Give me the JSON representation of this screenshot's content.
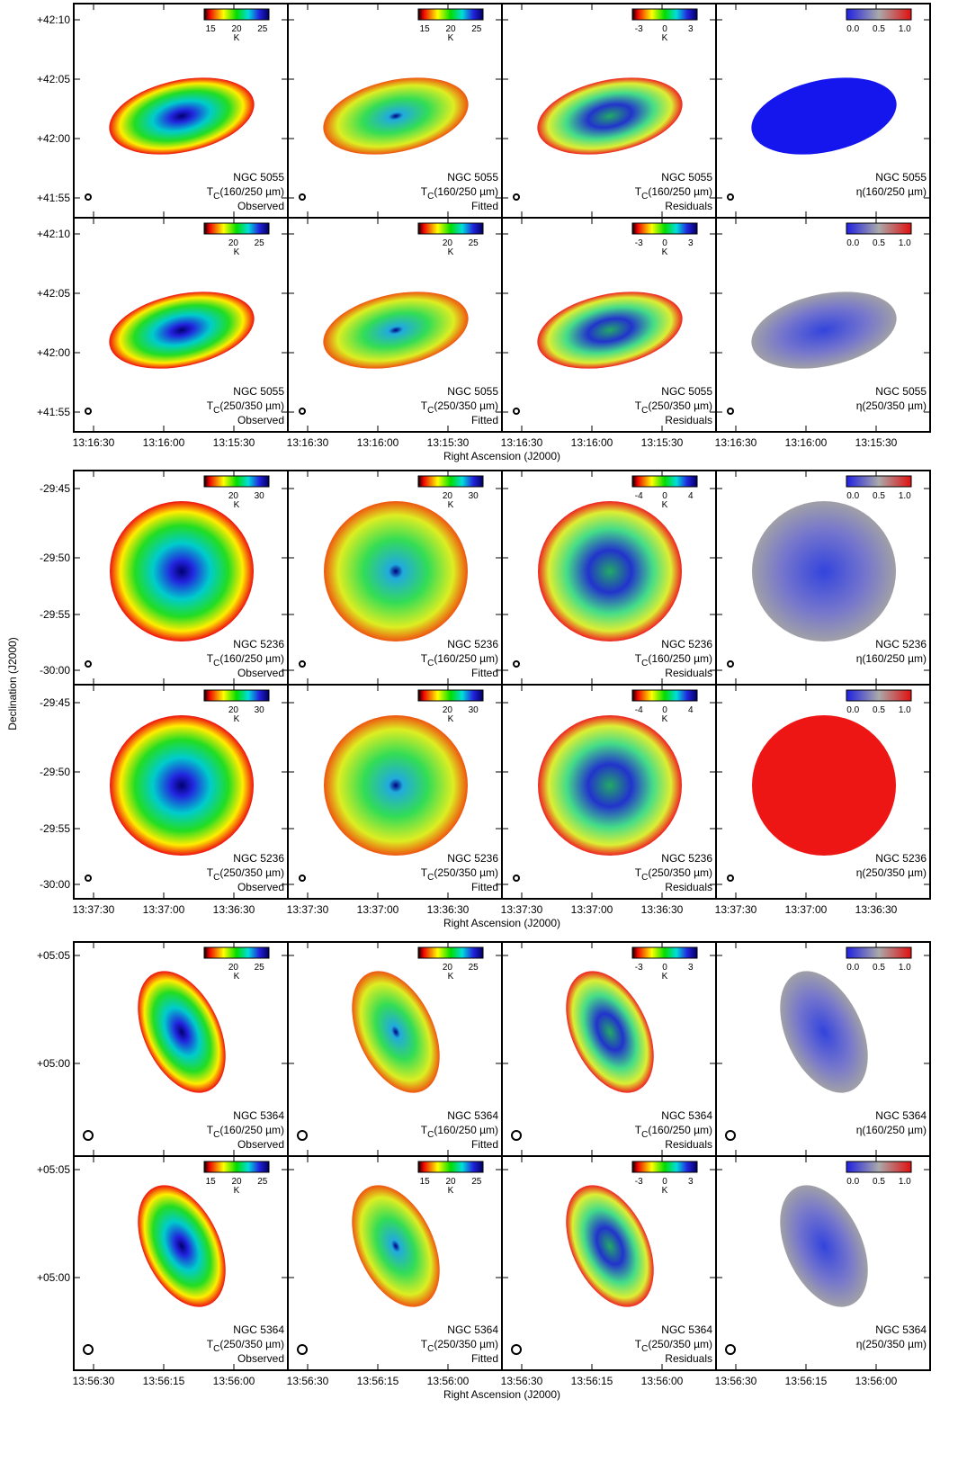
{
  "y_axis_label": "Declination (J2000)",
  "x_axis_label": "Right Ascension (J2000)",
  "groups": [
    {
      "yticks": [
        "+42:10",
        "+42:05",
        "+42:00",
        "+41:55"
      ],
      "xticks": [
        "13:16:30",
        "13:16:00",
        "13:15:30"
      ],
      "rows": [
        {
          "panels": [
            {
              "colorbar_ticks": [
                "15",
                "20",
                "25"
              ],
              "colorbar_unit": "K",
              "label": "NGC 5055",
              "symbol": "T",
              "subscript": "C",
              "band": "(160/250 µm)",
              "kind": "Observed"
            },
            {
              "colorbar_ticks": [
                "15",
                "20",
                "25"
              ],
              "colorbar_unit": "K",
              "label": "NGC 5055",
              "symbol": "T",
              "subscript": "C",
              "band": "(160/250 µm)",
              "kind": "Fitted"
            },
            {
              "colorbar_ticks": [
                "-3",
                "0",
                "3"
              ],
              "colorbar_unit": "K",
              "label": "NGC 5055",
              "symbol": "T",
              "subscript": "C",
              "band": "(160/250 µm)",
              "kind": "Residuals"
            },
            {
              "colorbar_ticks": [
                "0.0",
                "0.5",
                "1.0"
              ],
              "label": "NGC 5055",
              "symbol": "η",
              "band": "(160/250 µm)"
            }
          ]
        },
        {
          "panels": [
            {
              "colorbar_ticks": [
                "20",
                "25"
              ],
              "colorbar_unit": "K",
              "label": "NGC 5055",
              "symbol": "T",
              "subscript": "C",
              "band": "(250/350 µm)",
              "kind": "Observed"
            },
            {
              "colorbar_ticks": [
                "20",
                "25"
              ],
              "colorbar_unit": "K",
              "label": "NGC 5055",
              "symbol": "T",
              "subscript": "C",
              "band": "(250/350 µm)",
              "kind": "Fitted"
            },
            {
              "colorbar_ticks": [
                "-3",
                "0",
                "3"
              ],
              "colorbar_unit": "K",
              "label": "NGC 5055",
              "symbol": "T",
              "subscript": "C",
              "band": "(250/350 µm)",
              "kind": "Residuals"
            },
            {
              "colorbar_ticks": [
                "0.0",
                "0.5",
                "1.0"
              ],
              "label": "NGC 5055",
              "symbol": "η",
              "band": "(250/350 µm)"
            }
          ]
        }
      ]
    },
    {
      "yticks": [
        "-29:45",
        "-29:50",
        "-29:55",
        "-30:00"
      ],
      "xticks": [
        "13:37:30",
        "13:37:00",
        "13:36:30"
      ],
      "rows": [
        {
          "panels": [
            {
              "colorbar_ticks": [
                "20",
                "30"
              ],
              "colorbar_unit": "K",
              "label": "NGC 5236",
              "symbol": "T",
              "subscript": "C",
              "band": "(160/250 µm)",
              "kind": "Observed"
            },
            {
              "colorbar_ticks": [
                "20",
                "30"
              ],
              "colorbar_unit": "K",
              "label": "NGC 5236",
              "symbol": "T",
              "subscript": "C",
              "band": "(160/250 µm)",
              "kind": "Fitted"
            },
            {
              "colorbar_ticks": [
                "-4",
                "0",
                "4"
              ],
              "colorbar_unit": "K",
              "label": "NGC 5236",
              "symbol": "T",
              "subscript": "C",
              "band": "(160/250 µm)",
              "kind": "Residuals"
            },
            {
              "colorbar_ticks": [
                "0.0",
                "0.5",
                "1.0"
              ],
              "label": "NGC 5236",
              "symbol": "η",
              "band": "(160/250 µm)"
            }
          ]
        },
        {
          "panels": [
            {
              "colorbar_ticks": [
                "20",
                "30"
              ],
              "colorbar_unit": "K",
              "label": "NGC 5236",
              "symbol": "T",
              "subscript": "C",
              "band": "(250/350 µm)",
              "kind": "Observed"
            },
            {
              "colorbar_ticks": [
                "20",
                "30"
              ],
              "colorbar_unit": "K",
              "label": "NGC 5236",
              "symbol": "T",
              "subscript": "C",
              "band": "(250/350 µm)",
              "kind": "Fitted"
            },
            {
              "colorbar_ticks": [
                "-4",
                "0",
                "4"
              ],
              "colorbar_unit": "K",
              "label": "NGC 5236",
              "symbol": "T",
              "subscript": "C",
              "band": "(250/350 µm)",
              "kind": "Residuals"
            },
            {
              "colorbar_ticks": [
                "0.0",
                "0.5",
                "1.0"
              ],
              "label": "NGC 5236",
              "symbol": "η",
              "band": "(250/350 µm)"
            }
          ]
        }
      ]
    },
    {
      "yticks": [
        "+05:05",
        "+05:00"
      ],
      "xticks": [
        "13:56:30",
        "13:56:15",
        "13:56:00"
      ],
      "rows": [
        {
          "panels": [
            {
              "colorbar_ticks": [
                "20",
                "25"
              ],
              "colorbar_unit": "K",
              "label": "NGC 5364",
              "symbol": "T",
              "subscript": "C",
              "band": "(160/250 µm)",
              "kind": "Observed"
            },
            {
              "colorbar_ticks": [
                "20",
                "25"
              ],
              "colorbar_unit": "K",
              "label": "NGC 5364",
              "symbol": "T",
              "subscript": "C",
              "band": "(160/250 µm)",
              "kind": "Fitted"
            },
            {
              "colorbar_ticks": [
                "-3",
                "0",
                "3"
              ],
              "colorbar_unit": "K",
              "label": "NGC 5364",
              "symbol": "T",
              "subscript": "C",
              "band": "(160/250 µm)",
              "kind": "Residuals"
            },
            {
              "colorbar_ticks": [
                "0.0",
                "0.5",
                "1.0"
              ],
              "label": "NGC 5364",
              "symbol": "η",
              "band": "(160/250 µm)"
            }
          ]
        },
        {
          "panels": [
            {
              "colorbar_ticks": [
                "15",
                "20",
                "25"
              ],
              "colorbar_unit": "K",
              "label": "NGC 5364",
              "symbol": "T",
              "subscript": "C",
              "band": "(250/350 µm)",
              "kind": "Observed"
            },
            {
              "colorbar_ticks": [
                "15",
                "20",
                "25"
              ],
              "colorbar_unit": "K",
              "label": "NGC 5364",
              "symbol": "T",
              "subscript": "C",
              "band": "(250/350 µm)",
              "kind": "Fitted"
            },
            {
              "colorbar_ticks": [
                "-3",
                "0",
                "3"
              ],
              "colorbar_unit": "K",
              "label": "NGC 5364",
              "symbol": "T",
              "subscript": "C",
              "band": "(250/350 µm)",
              "kind": "Residuals"
            },
            {
              "colorbar_ticks": [
                "0.0",
                "0.5",
                "1.0"
              ],
              "label": "NGC 5364",
              "symbol": "η",
              "band": "(250/350 µm)"
            }
          ]
        }
      ]
    }
  ]
}
